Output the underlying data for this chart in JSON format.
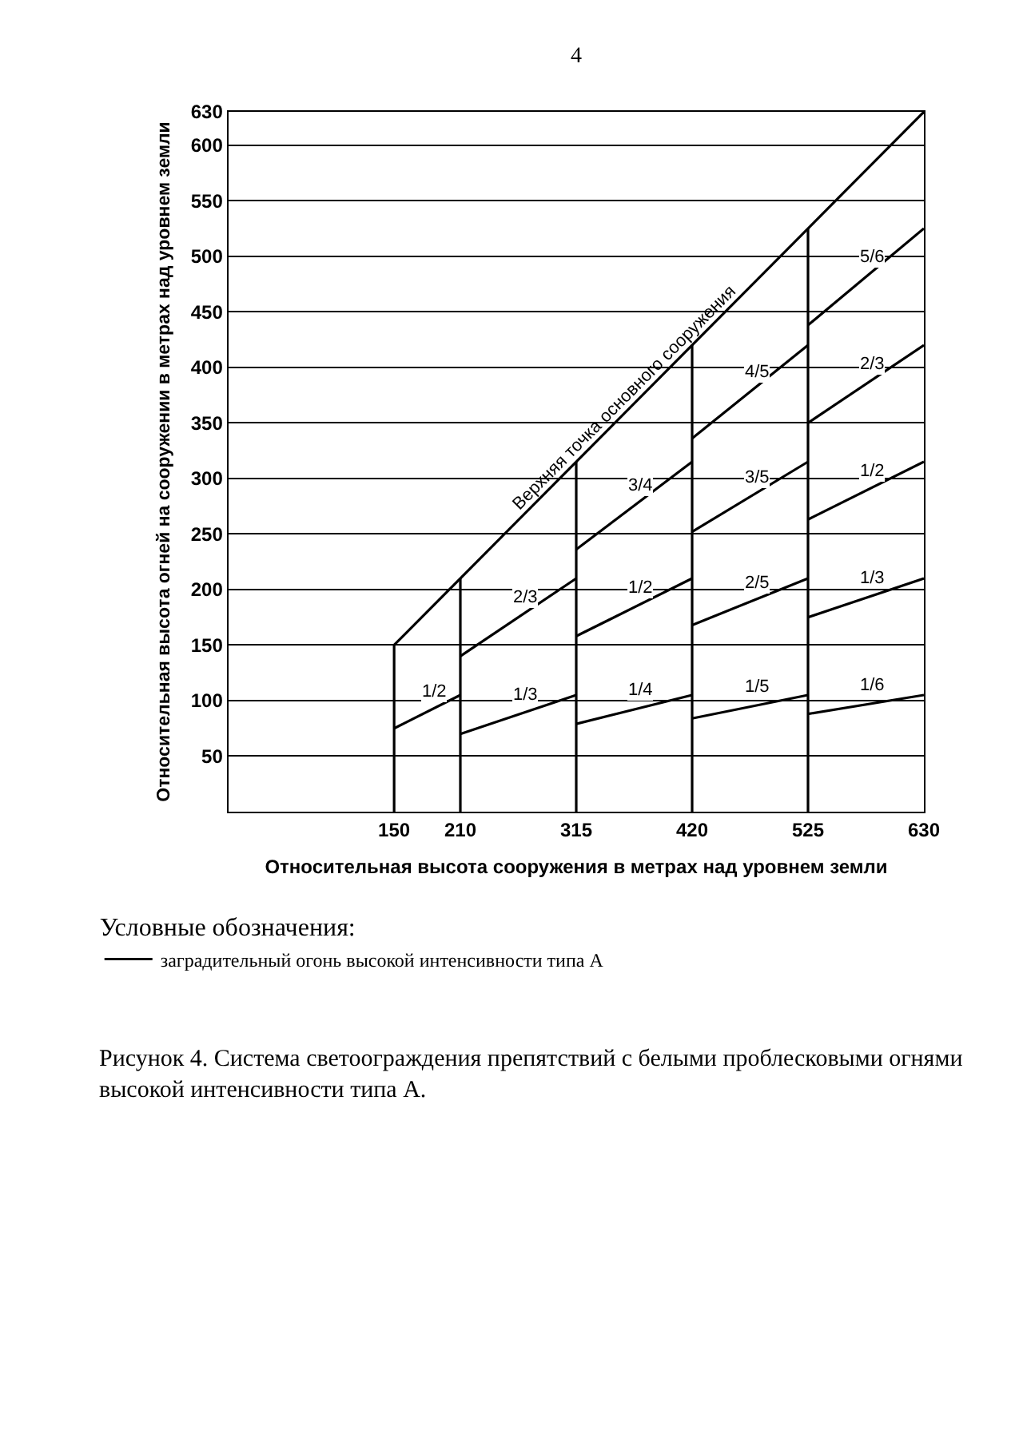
{
  "chart_data": {
    "type": "line",
    "xlabel": "Относительная высота сооружения в метрах над уровнем земли",
    "ylabel": "Относительная высота огней на сооружении в метрах над уровнем земли",
    "legend_title": "Условные обозначения:",
    "legend": "bottom",
    "grid": "y",
    "xlim": [
      0,
      630
    ],
    "xticks": [
      150,
      210,
      315,
      420,
      525,
      630
    ],
    "ylim": [
      0,
      630
    ],
    "yticks": [
      50,
      100,
      150,
      200,
      250,
      300,
      350,
      400,
      450,
      500,
      550,
      600,
      630
    ],
    "series": [
      {
        "name": "Верхняя точка основного сооружения",
        "color": "#000000",
        "x": [
          150,
          630
        ],
        "values": [
          150,
          630
        ]
      },
      {
        "color": "#000000",
        "x": [
          150,
          150
        ],
        "values": [
          0,
          150
        ]
      },
      {
        "color": "#000000",
        "x": [
          210,
          210
        ],
        "values": [
          0,
          210
        ]
      },
      {
        "color": "#000000",
        "x": [
          315,
          315
        ],
        "values": [
          0,
          315
        ]
      },
      {
        "color": "#000000",
        "x": [
          420,
          420
        ],
        "values": [
          0,
          420
        ]
      },
      {
        "color": "#000000",
        "x": [
          525,
          525
        ],
        "values": [
          0,
          525
        ]
      },
      {
        "name": "заградительный огонь высокой интенсивности типа А",
        "color": "#000000",
        "x": [
          150,
          210
        ],
        "values": [
          75,
          105
        ]
      },
      {
        "color": "#000000",
        "x": [
          210,
          315
        ],
        "values": [
          70,
          105
        ]
      },
      {
        "color": "#000000",
        "x": [
          210,
          315
        ],
        "values": [
          140,
          210
        ]
      },
      {
        "color": "#000000",
        "x": [
          315,
          420
        ],
        "values": [
          79,
          105
        ]
      },
      {
        "color": "#000000",
        "x": [
          315,
          420
        ],
        "values": [
          158,
          210
        ]
      },
      {
        "color": "#000000",
        "x": [
          315,
          420
        ],
        "values": [
          236,
          315
        ]
      },
      {
        "color": "#000000",
        "x": [
          420,
          525
        ],
        "values": [
          84,
          105
        ]
      },
      {
        "color": "#000000",
        "x": [
          420,
          525
        ],
        "values": [
          168,
          210
        ]
      },
      {
        "color": "#000000",
        "x": [
          420,
          525
        ],
        "values": [
          252,
          315
        ]
      },
      {
        "color": "#000000",
        "x": [
          420,
          525
        ],
        "values": [
          336,
          420
        ]
      },
      {
        "color": "#000000",
        "x": [
          525,
          630
        ],
        "values": [
          88,
          105
        ]
      },
      {
        "color": "#000000",
        "x": [
          525,
          630
        ],
        "values": [
          175,
          210
        ]
      },
      {
        "color": "#000000",
        "x": [
          525,
          630
        ],
        "values": [
          263,
          315
        ]
      },
      {
        "color": "#000000",
        "x": [
          525,
          630
        ],
        "values": [
          350,
          420
        ]
      },
      {
        "color": "#000000",
        "x": [
          525,
          630
        ],
        "values": [
          438,
          525
        ]
      }
    ],
    "annotations": [
      "4",
      {
        "text": "1/2",
        "x": 180,
        "y": 90
      },
      {
        "text": "1/3",
        "x": 262.5,
        "y": 87.5
      },
      {
        "text": "2/3",
        "x": 262.5,
        "y": 175
      },
      {
        "text": "1/4",
        "x": 367.5,
        "y": 92
      },
      {
        "text": "1/2",
        "x": 367.5,
        "y": 183.75
      },
      {
        "text": "3/4",
        "x": 367.5,
        "y": 275.6
      },
      {
        "text": "1/5",
        "x": 472.5,
        "y": 94.5
      },
      {
        "text": "2/5",
        "x": 472.5,
        "y": 189
      },
      {
        "text": "3/5",
        "x": 472.5,
        "y": 283.5
      },
      {
        "text": "4/5",
        "x": 472.5,
        "y": 378
      },
      {
        "text": "1/6",
        "x": 577.5,
        "y": 96.25
      },
      {
        "text": "1/3",
        "x": 577.5,
        "y": 192.5
      },
      {
        "text": "1/2",
        "x": 577.5,
        "y": 288.75
      },
      {
        "text": "2/3",
        "x": 577.5,
        "y": 385
      },
      {
        "text": "5/6",
        "x": 577.5,
        "y": 481.25
      },
      "Рисунок 4. Система светоограждения препятствий с белыми проблесковыми огнями высокой интенсивности типа А."
    ]
  }
}
